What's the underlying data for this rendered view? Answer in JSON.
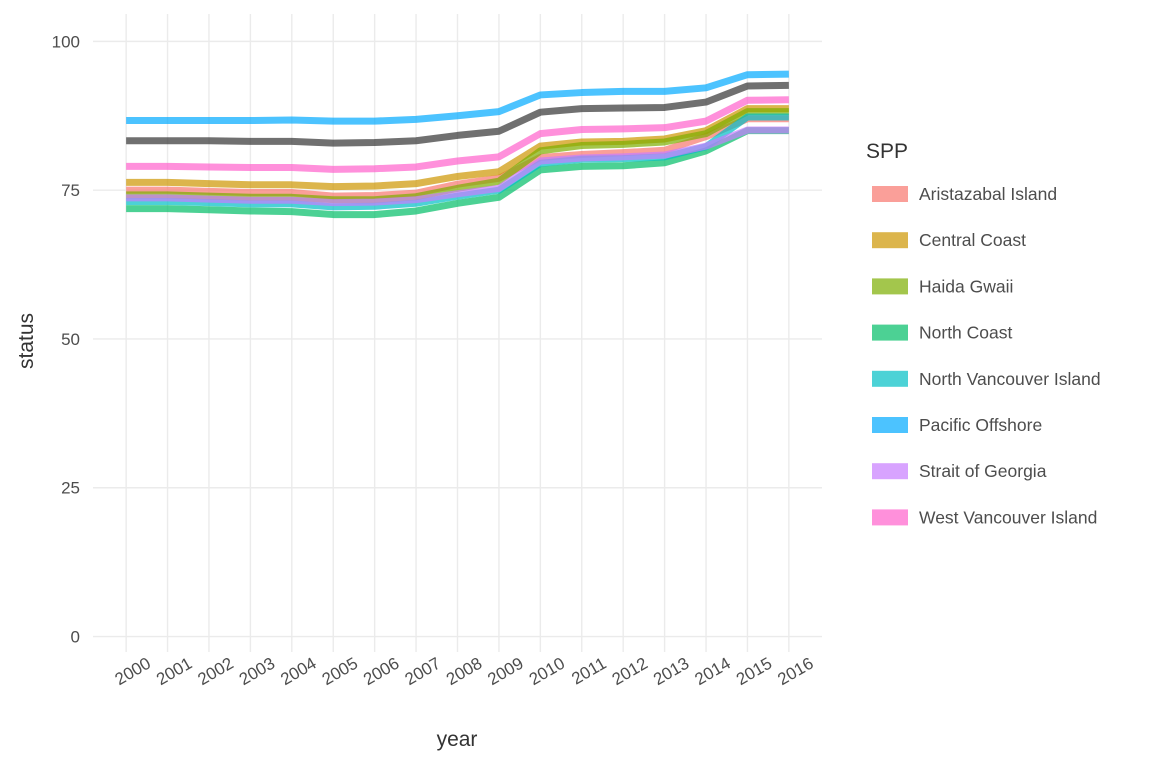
{
  "chart_data": {
    "type": "line",
    "title": "",
    "xlabel": "year",
    "ylabel": "status",
    "x": [
      2000,
      2001,
      2002,
      2003,
      2004,
      2005,
      2006,
      2007,
      2008,
      2009,
      2010,
      2011,
      2012,
      2013,
      2014,
      2015,
      2016
    ],
    "xlim": [
      1999.2,
      2016.8
    ],
    "ylim": [
      -2.6,
      104.6
    ],
    "yticks": [
      0,
      25,
      50,
      75,
      100
    ],
    "grid": true,
    "legend": {
      "title": "SPP",
      "placement": "right",
      "entries": [
        "Aristazabal Island",
        "Central Coast",
        "Haida Gwaii",
        "North Coast",
        "North Vancouver Island",
        "Pacific Offshore",
        "Strait of Georgia",
        "West Vancouver Island"
      ]
    },
    "colors": {
      "Aristazabal Island": "#F8766D",
      "Central Coast": "#CD9600",
      "Haida Gwaii": "#7CAE00",
      "North Coast": "#00BE67",
      "North Vancouver Island": "#00BFC4",
      "Pacific Offshore": "#00A9FF",
      "Strait of Georgia": "#C77CFF",
      "West Vancouver Island": "#FF61CC",
      "unlabeled": "#333333"
    },
    "series": [
      {
        "name": "Aristazabal Island",
        "values": [
          75.0,
          75.0,
          74.8,
          74.6,
          74.6,
          74.0,
          74.1,
          74.5,
          76.0,
          77.0,
          80.5,
          81.0,
          81.3,
          81.7,
          84.0,
          87.0,
          87.0
        ]
      },
      {
        "name": "Central Coast",
        "values": [
          76.3,
          76.3,
          76.1,
          75.9,
          75.9,
          75.6,
          75.7,
          76.1,
          77.3,
          78.1,
          82.4,
          83.1,
          83.2,
          83.6,
          85.0,
          88.7,
          88.7
        ]
      },
      {
        "name": "Haida Gwaii",
        "values": [
          74.2,
          74.2,
          74.0,
          73.8,
          73.8,
          73.4,
          73.4,
          73.9,
          75.3,
          76.5,
          81.6,
          82.5,
          82.7,
          83.1,
          84.5,
          88.2,
          88.2
        ]
      },
      {
        "name": "North Coast",
        "values": [
          71.9,
          71.9,
          71.7,
          71.5,
          71.4,
          70.9,
          70.9,
          71.5,
          72.8,
          73.8,
          78.4,
          79.0,
          79.1,
          79.6,
          81.6,
          85.0,
          85.0
        ]
      },
      {
        "name": "North Vancouver Island",
        "values": [
          73.1,
          73.1,
          72.9,
          72.7,
          72.7,
          72.2,
          72.3,
          72.8,
          74.0,
          75.0,
          79.5,
          80.2,
          80.3,
          80.6,
          82.3,
          87.3,
          87.3
        ]
      },
      {
        "name": "Pacific Offshore",
        "values": [
          86.7,
          86.7,
          86.7,
          86.7,
          86.8,
          86.6,
          86.6,
          86.9,
          87.5,
          88.2,
          91.0,
          91.4,
          91.6,
          91.6,
          92.2,
          94.4,
          94.5
        ]
      },
      {
        "name": "Strait of Georgia",
        "values": [
          73.7,
          73.7,
          73.5,
          73.3,
          73.3,
          72.9,
          73.0,
          73.4,
          74.4,
          75.3,
          79.9,
          80.4,
          80.6,
          80.9,
          82.4,
          85.1,
          85.1
        ]
      },
      {
        "name": "West Vancouver Island",
        "values": [
          79.0,
          79.0,
          78.9,
          78.8,
          78.8,
          78.5,
          78.6,
          78.9,
          79.9,
          80.6,
          84.5,
          85.2,
          85.3,
          85.5,
          86.6,
          90.1,
          90.2
        ]
      },
      {
        "values": [
          83.3,
          83.3,
          83.3,
          83.2,
          83.2,
          82.9,
          83.0,
          83.3,
          84.2,
          84.9,
          88.1,
          88.7,
          88.8,
          88.9,
          89.8,
          92.5,
          92.6
        ]
      }
    ]
  }
}
